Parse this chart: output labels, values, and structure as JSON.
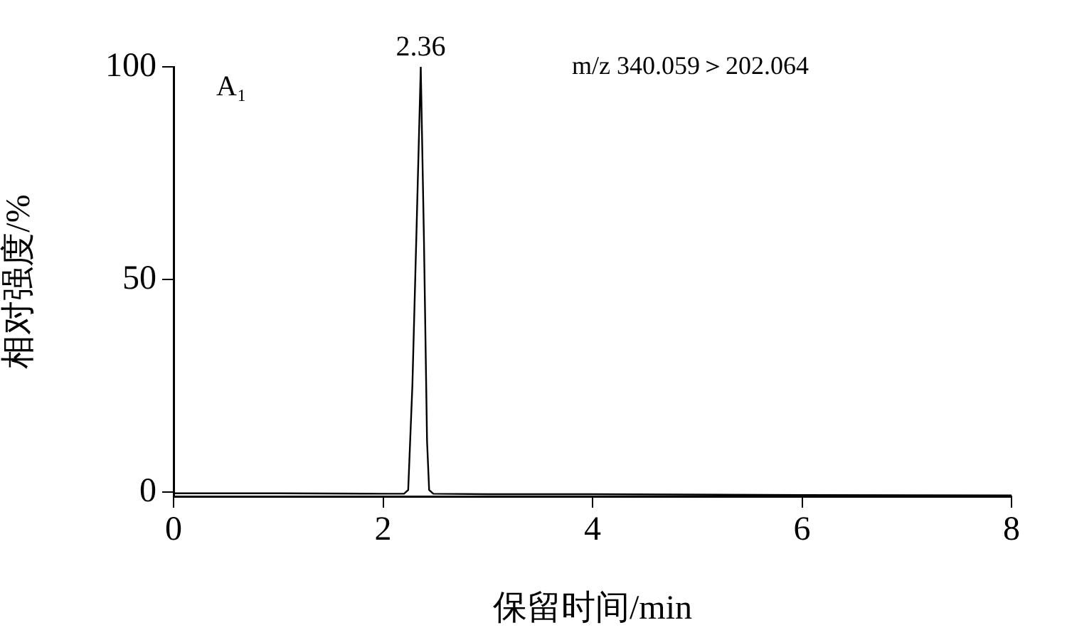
{
  "chart_data": {
    "type": "line",
    "xlabel": "保留时间/min",
    "ylabel": "相对强度/%",
    "annotations": [
      "A₁",
      "m/z 340.059＞202.064",
      {
        "text": "2.36",
        "x": 2.36,
        "y": 100
      }
    ],
    "series": [
      {
        "color": "#000000",
        "x": [
          0,
          1,
          2,
          2.2,
          2.24,
          2.28,
          2.32,
          2.36,
          2.39,
          2.42,
          2.44,
          2.48,
          3,
          4,
          6,
          8
        ],
        "values": [
          -0.3,
          -0.3,
          -0.4,
          -0.4,
          0.5,
          25,
          62,
          100,
          60,
          12,
          0.5,
          -0.4,
          -0.5,
          -0.5,
          -0.7,
          -0.8
        ]
      }
    ],
    "xlim": [
      0,
      8
    ],
    "xticks": [
      0,
      2,
      4,
      6,
      8
    ],
    "ylim": [
      -1,
      100
    ],
    "yticks": [
      0,
      50,
      100
    ],
    "grid": false,
    "legend": false,
    "marker": "none",
    "line_style": "solid"
  }
}
